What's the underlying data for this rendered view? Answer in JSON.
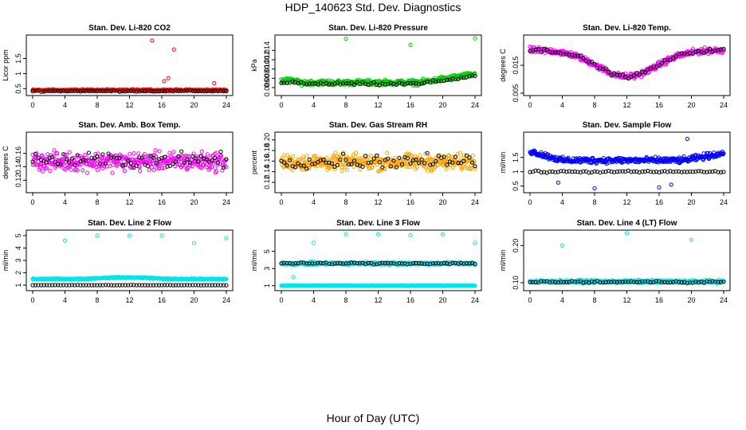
{
  "figure": {
    "title": "HDP_140623  Std. Dev. Diagnostics",
    "xlabel": "Hour of Day (UTC)"
  },
  "chart_data": [
    {
      "type": "scatter",
      "title": "Stan. Dev. Li-820 CO2",
      "ylabel": "Licor ppm",
      "xlim": [
        0,
        24
      ],
      "ylim": [
        0.35,
        2.2
      ],
      "xticks": [
        0,
        4,
        8,
        12,
        16,
        20,
        24
      ],
      "yticks": [
        0.5,
        1.0,
        1.5
      ],
      "ytick_labels": [
        "0.5",
        "1",
        "1.5"
      ],
      "series": [
        {
          "color": "#ff0000",
          "base": 0.45,
          "spread": 0.04,
          "curve": "flat",
          "outliers": [
            [
              14.8,
              2.1
            ],
            [
              17.5,
              1.8
            ],
            [
              16.8,
              0.85
            ],
            [
              16.3,
              0.75
            ],
            [
              22.5,
              0.68
            ]
          ]
        },
        {
          "color": "#000000",
          "base": 0.42,
          "spread": 0.03,
          "curve": "flat",
          "outliers": []
        }
      ]
    },
    {
      "type": "scatter",
      "title": "Stan. Dev. Li-820 Pressure",
      "ylabel": "kPa",
      "xlim": [
        0,
        24
      ],
      "ylim": [
        0.0048,
        0.0168
      ],
      "xticks": [
        0,
        4,
        8,
        12,
        16,
        20,
        24
      ],
      "yticks": [
        0.006,
        0.008,
        0.01,
        0.012,
        0.014
      ],
      "ytick_labels": [
        "0.006",
        "0.008",
        "0.010",
        "0.012",
        "0.014"
      ],
      "series": [
        {
          "color": "#00cc00",
          "base": 0.0071,
          "spread": 0.0008,
          "curve": "pressure",
          "outliers": [
            [
              8,
              0.0165
            ],
            [
              16,
              0.0152
            ],
            [
              24,
              0.0166
            ]
          ]
        },
        {
          "color": "#000000",
          "base": 0.0068,
          "spread": 0.0005,
          "curve": "pressure",
          "outliers": []
        }
      ]
    },
    {
      "type": "scatter",
      "title": "Stan. Dev. Li-820 Temp.",
      "ylabel": "degrees C",
      "xlim": [
        0,
        24
      ],
      "ylim": [
        0.005,
        0.025
      ],
      "xticks": [
        0,
        4,
        8,
        12,
        16,
        20,
        24
      ],
      "yticks": [
        0.005,
        0.015
      ],
      "ytick_labels": [
        "0.005",
        "0.015"
      ],
      "series": [
        {
          "color": "#ff00ff",
          "base": 0.0,
          "spread": 0.0015,
          "curve": "temp",
          "outliers": []
        },
        {
          "color": "#000000",
          "base": 0.0,
          "spread": 0.001,
          "curve": "temp",
          "outliers": []
        }
      ]
    },
    {
      "type": "scatter",
      "title": "Stan. Dev. Amb. Box Temp.",
      "ylabel": "degrees C",
      "xlim": [
        0,
        24
      ],
      "ylim": [
        0.105,
        0.188
      ],
      "xticks": [
        0,
        4,
        8,
        12,
        16,
        20,
        24
      ],
      "yticks": [
        0.12,
        0.14,
        0.16
      ],
      "ytick_labels": [
        "0.12",
        "0.14",
        "0.16"
      ],
      "series": [
        {
          "color": "#ff00ff",
          "base": 0.148,
          "spread": 0.02,
          "curve": "flat",
          "outliers": []
        },
        {
          "color": "#000000",
          "base": 0.15,
          "spread": 0.017,
          "curve": "flat",
          "outliers": []
        }
      ]
    },
    {
      "type": "scatter",
      "title": "Stan. Dev. Gas Stream RH",
      "ylabel": "percent",
      "xlim": [
        0,
        24
      ],
      "ylim": [
        0.105,
        0.21
      ],
      "xticks": [
        0,
        4,
        8,
        12,
        16,
        20,
        24
      ],
      "yticks": [
        0.12,
        0.14,
        0.16,
        0.18,
        0.2
      ],
      "ytick_labels": [
        "0.12",
        "0.14",
        "0.16",
        "0.18",
        "0.20"
      ],
      "series": [
        {
          "color": "#ffa500",
          "base": 0.158,
          "spread": 0.022,
          "curve": "flat",
          "outliers": []
        },
        {
          "color": "#000000",
          "base": 0.16,
          "spread": 0.018,
          "curve": "flat",
          "outliers": []
        }
      ]
    },
    {
      "type": "scatter",
      "title": "Stan. Dev. Sample Flow",
      "ylabel": "ml/min",
      "xlim": [
        0,
        24
      ],
      "ylim": [
        0.35,
        2.3
      ],
      "xticks": [
        0,
        4,
        8,
        12,
        16,
        20,
        24
      ],
      "yticks": [
        0.5,
        1.0,
        1.5
      ],
      "ytick_labels": [
        "0.5",
        "1",
        "1.5"
      ],
      "series": [
        {
          "color": "#0000ff",
          "base": 1.4,
          "spread": 0.15,
          "curve": "flow",
          "outliers": [
            [
              8,
              0.42
            ],
            [
              16,
              0.45
            ],
            [
              3.5,
              0.62
            ],
            [
              19.5,
              2.15
            ],
            [
              17.5,
              0.55
            ]
          ]
        },
        {
          "color": "#000000",
          "base": 1.0,
          "spread": 0.05,
          "curve": "flat",
          "outliers": []
        }
      ]
    },
    {
      "type": "scatter",
      "title": "Stan. Dev. Line 2 Flow",
      "ylabel": "ml/min",
      "xlim": [
        0,
        24
      ],
      "ylim": [
        0.75,
        5.25
      ],
      "xticks": [
        0,
        4,
        8,
        12,
        16,
        20,
        24
      ],
      "yticks": [
        1,
        2,
        3,
        4,
        5
      ],
      "ytick_labels": [
        "1",
        "2",
        "3",
        "4",
        "5"
      ],
      "series": [
        {
          "color": "#00e5ee",
          "base": 1.5,
          "spread": 0.07,
          "curve": "line2",
          "outliers": [
            [
              4,
              4.6
            ],
            [
              8,
              5.0
            ],
            [
              12,
              5.0
            ],
            [
              16,
              5.0
            ],
            [
              20,
              4.4
            ],
            [
              24,
              4.8
            ]
          ]
        },
        {
          "color": "#000000",
          "base": 1.0,
          "spread": 0.02,
          "curve": "flat",
          "outliers": []
        }
      ]
    },
    {
      "type": "scatter",
      "title": "Stan. Dev. Line 3 Flow",
      "ylabel": "ml/min",
      "xlim": [
        0,
        24
      ],
      "ylim": [
        0.7,
        7.2
      ],
      "xticks": [
        0,
        4,
        8,
        12,
        16,
        20,
        24
      ],
      "yticks": [
        1,
        3,
        5
      ],
      "ytick_labels": [
        "1",
        "3",
        "5"
      ],
      "series": [
        {
          "color": "#00e5ee",
          "base": 1.0,
          "spread": 0.05,
          "curve": "flat",
          "outliers": [
            [
              4,
              6.0
            ],
            [
              8,
              7.0
            ],
            [
              12,
              7.0
            ],
            [
              16,
              6.9
            ],
            [
              20,
              7.0
            ],
            [
              24,
              6.0
            ],
            [
              1.5,
              2.0
            ]
          ]
        },
        {
          "color": "#00e5ee",
          "base": 3.6,
          "spread": 0.25,
          "curve": "flat",
          "outliers": []
        },
        {
          "color": "#000000",
          "base": 3.6,
          "spread": 0.15,
          "curve": "flat",
          "outliers": []
        }
      ]
    },
    {
      "type": "scatter",
      "title": "Stan. Dev. Line 4 (LT) Flow",
      "ylabel": "ml/min",
      "xlim": [
        0,
        24
      ],
      "ylim": [
        0.085,
        0.235
      ],
      "xticks": [
        0,
        4,
        8,
        12,
        16,
        20,
        24
      ],
      "yticks": [
        0.1,
        0.2
      ],
      "ytick_labels": [
        "0.10",
        "0.20"
      ],
      "series": [
        {
          "color": "#00e5ee",
          "base": 0.103,
          "spread": 0.006,
          "curve": "flat",
          "outliers": [
            [
              4,
              0.2
            ],
            [
              12,
              0.233
            ],
            [
              20,
              0.215
            ]
          ]
        },
        {
          "color": "#000000",
          "base": 0.102,
          "spread": 0.004,
          "curve": "flat",
          "outliers": []
        }
      ]
    }
  ]
}
